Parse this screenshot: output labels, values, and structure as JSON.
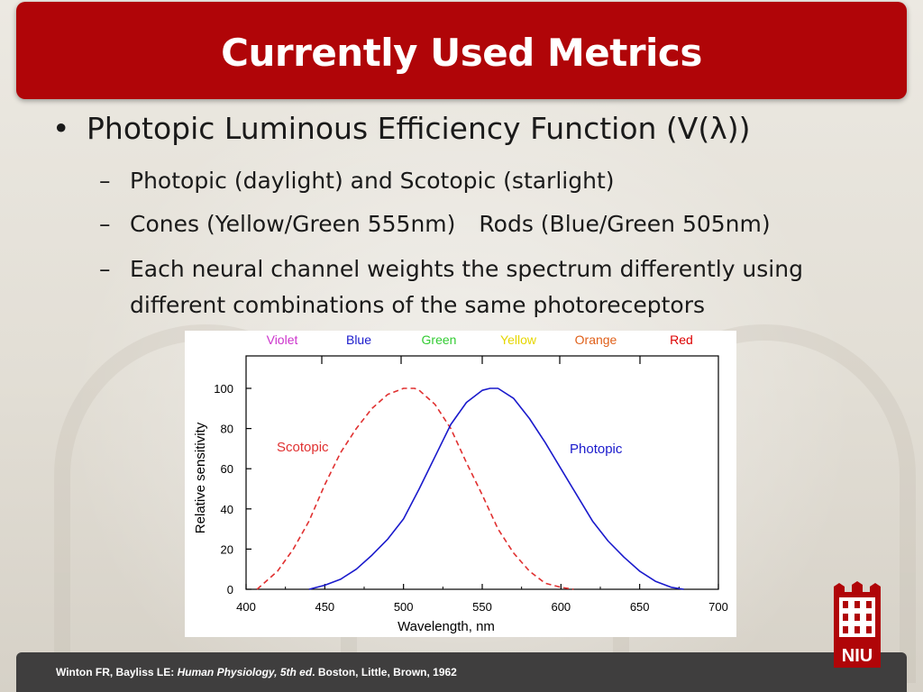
{
  "slide": {
    "title": "Currently Used Metrics",
    "bullet": "Photopic Luminous Efficiency Function  (V(λ))",
    "bullet_marker": "•",
    "sub_marker": "–",
    "sub_items": [
      {
        "text": "Photopic (daylight) and Scotopic (starlight)"
      },
      {
        "text_a": "Cones (Yellow/Green 555nm)",
        "text_b": "Rods (Blue/Green 505nm)"
      },
      {
        "line1": "Each neural channel weights the spectrum differently using",
        "line2": "different combinations of the same photoreceptors"
      }
    ]
  },
  "footer": {
    "authors": "Winton FR, Bayliss LE: ",
    "book": "Human Physiology, 5th ed",
    "rest": ". Boston, Little, Brown, 1962"
  },
  "logo": {
    "text": "NIU",
    "icon": "niu-tower-logo-icon",
    "color": "#b00508"
  },
  "chart_data": {
    "type": "line",
    "xlabel": "Wavelength, nm",
    "ylabel": "Relative sensitivity",
    "xlim": [
      400,
      700
    ],
    "ylim": [
      0,
      100
    ],
    "xticks": [
      400,
      450,
      500,
      550,
      600,
      650,
      700
    ],
    "yticks": [
      0,
      20,
      40,
      60,
      80,
      100
    ],
    "grid": false,
    "color_bands": [
      {
        "label": "Violet",
        "color": "#cc33cc"
      },
      {
        "label": "Blue",
        "color": "#1a1acc"
      },
      {
        "label": "Green",
        "color": "#33cc33"
      },
      {
        "label": "Yellow",
        "color": "#e6d600"
      },
      {
        "label": "Orange",
        "color": "#e0601a"
      },
      {
        "label": "Red",
        "color": "#dd0000"
      }
    ],
    "series": [
      {
        "name": "Scotopic",
        "color": "#e03030",
        "dash": true,
        "x": [
          407,
          420,
          430,
          440,
          450,
          460,
          470,
          480,
          490,
          500,
          507,
          510,
          520,
          530,
          540,
          550,
          560,
          570,
          580,
          590,
          600,
          608
        ],
        "y": [
          0,
          9,
          20,
          34,
          52,
          68,
          80,
          90,
          97,
          100,
          100,
          99,
          92,
          80,
          63,
          47,
          30,
          18,
          9,
          3,
          1,
          0
        ]
      },
      {
        "name": "Photopic",
        "color": "#1a1acc",
        "dash": false,
        "x": [
          440,
          450,
          460,
          470,
          480,
          490,
          500,
          510,
          520,
          530,
          540,
          550,
          555,
          560,
          570,
          580,
          590,
          600,
          610,
          620,
          630,
          640,
          650,
          660,
          670,
          678
        ],
        "y": [
          0,
          2,
          5,
          10,
          17,
          25,
          35,
          50,
          66,
          82,
          93,
          99,
          100,
          100,
          95,
          85,
          73,
          60,
          47,
          34,
          24,
          16,
          9,
          4,
          1,
          0
        ]
      }
    ]
  }
}
